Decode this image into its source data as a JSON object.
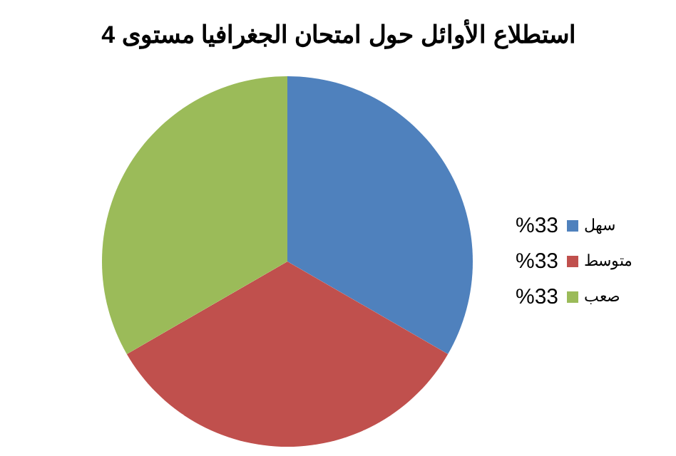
{
  "chart_data": {
    "type": "pie",
    "title": "استطلاع الأوائل حول امتحان الجغرافيا مستوى 4",
    "categories": [
      "سهل",
      "متوسط",
      "صعب"
    ],
    "values": [
      33,
      33,
      33
    ],
    "value_labels": [
      "%33",
      "%33",
      "%33"
    ],
    "colors": [
      "#4f81bd",
      "#c0504d",
      "#9bbb59"
    ],
    "legend": "right"
  }
}
